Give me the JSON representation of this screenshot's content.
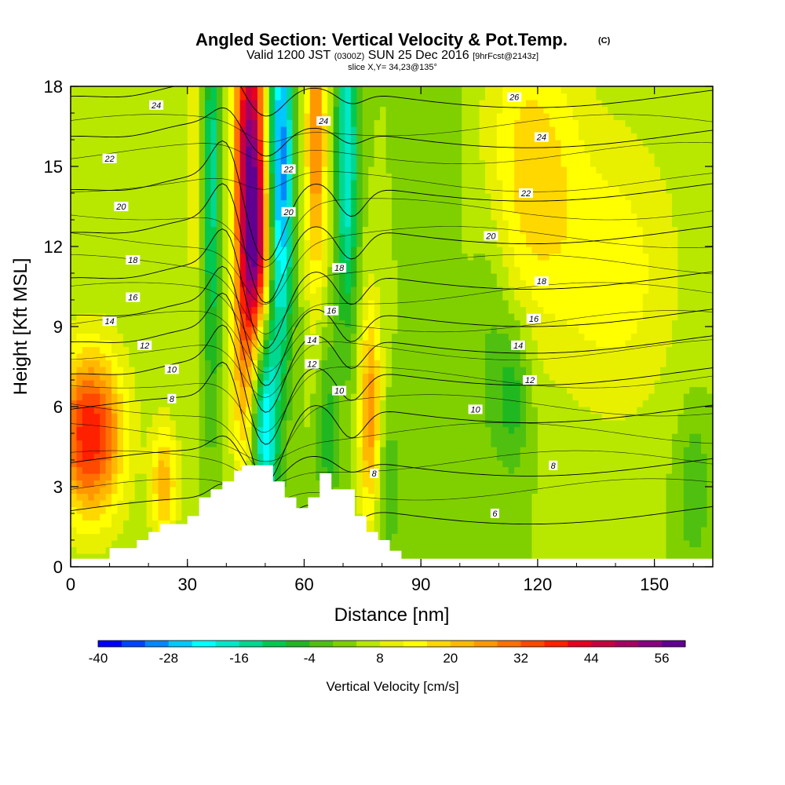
{
  "title": {
    "main": "Angled Section: Vertical Velocity & Pot.Temp.",
    "units": "(C)",
    "valid_prefix": "Valid 1200 JST",
    "valid_utc": "(0300Z)",
    "valid_date": "SUN 25 Dec 2016",
    "forecast": "[9hrFcst@2143z]",
    "slice": "slice X,Y= 34,23@135°"
  },
  "chart_data": {
    "type": "heatmap",
    "xlabel": "Distance [nm]",
    "ylabel": "Height [Kft MSL]",
    "xlim": [
      0,
      165
    ],
    "ylim": [
      0,
      18
    ],
    "x_ticks": [
      0,
      30,
      60,
      90,
      120,
      150
    ],
    "y_ticks": [
      0,
      3,
      6,
      9,
      12,
      15,
      18
    ],
    "colorbar": {
      "label": "Vertical Velocity [cm/s]",
      "range": [
        -40,
        60
      ],
      "tick_values": [
        -40,
        -28,
        -16,
        -4,
        8,
        20,
        32,
        44,
        56
      ],
      "colors": [
        "#0000ff",
        "#0044ff",
        "#0088ff",
        "#00c8ff",
        "#00ffff",
        "#00e8c8",
        "#00d890",
        "#00c850",
        "#20b820",
        "#50c010",
        "#80d000",
        "#b8e800",
        "#e8f000",
        "#ffff00",
        "#ffd800",
        "#ffb800",
        "#ff9800",
        "#ff7000",
        "#ff4800",
        "#ff2000",
        "#e80020",
        "#c80040",
        "#a80060",
        "#880080",
        "#600090"
      ]
    },
    "vertical_velocity_features": [
      {
        "x": 5,
        "y": 5,
        "sigma_x": 6,
        "sigma_y": 2.2,
        "value": 36
      },
      {
        "x": 24,
        "y": 3.2,
        "sigma_x": 2.5,
        "sigma_y": 1.6,
        "value": 18
      },
      {
        "x": 33,
        "y": 16,
        "sigma_x": 2.5,
        "sigma_y": 5,
        "value": 10
      },
      {
        "x": 36,
        "y": 15,
        "sigma_x": 1.8,
        "sigma_y": 6,
        "value": -22
      },
      {
        "x": 46,
        "y": 15.5,
        "sigma_x": 2.8,
        "sigma_y": 4.5,
        "value": 48
      },
      {
        "x": 48,
        "y": 11.5,
        "sigma_x": 2.5,
        "sigma_y": 2.5,
        "value": 26
      },
      {
        "x": 54,
        "y": 15,
        "sigma_x": 2.2,
        "sigma_y": 5,
        "value": -36
      },
      {
        "x": 50,
        "y": 5.5,
        "sigma_x": 2.2,
        "sigma_y": 3,
        "value": -28
      },
      {
        "x": 44,
        "y": 7,
        "sigma_x": 2,
        "sigma_y": 3,
        "value": 14
      },
      {
        "x": 63,
        "y": 16,
        "sigma_x": 2,
        "sigma_y": 4,
        "value": 24
      },
      {
        "x": 71,
        "y": 15.5,
        "sigma_x": 2,
        "sigma_y": 4.5,
        "value": -24
      },
      {
        "x": 66,
        "y": 5,
        "sigma_x": 2,
        "sigma_y": 2.5,
        "value": -10
      },
      {
        "x": 77,
        "y": 5.5,
        "sigma_x": 2,
        "sigma_y": 3,
        "value": 24
      },
      {
        "x": 81,
        "y": 3,
        "sigma_x": 3,
        "sigma_y": 2,
        "value": -8
      },
      {
        "x": 118,
        "y": 15,
        "sigma_x": 9,
        "sigma_y": 4,
        "value": 14
      },
      {
        "x": 108,
        "y": 9,
        "sigma_x": 4,
        "sigma_y": 4,
        "value": -6
      },
      {
        "x": 140,
        "y": 11,
        "sigma_x": 12,
        "sigma_y": 4,
        "value": 10
      },
      {
        "x": 114,
        "y": 6.5,
        "sigma_x": 3,
        "sigma_y": 2,
        "value": -10
      },
      {
        "x": 160,
        "y": 3,
        "sigma_x": 3,
        "sigma_y": 2,
        "value": -8
      },
      {
        "x": 95,
        "y": 16,
        "sigma_x": 4,
        "sigma_y": 4,
        "value": -4
      }
    ],
    "background_value": 4,
    "theta_contours": {
      "levels": [
        6,
        8,
        10,
        12,
        14,
        16,
        18,
        20,
        22,
        24,
        26
      ],
      "labels": [
        {
          "text": "24",
          "x": 22,
          "y": 17.3
        },
        {
          "text": "22",
          "x": 10,
          "y": 15.3
        },
        {
          "text": "20",
          "x": 13,
          "y": 13.5
        },
        {
          "text": "18",
          "x": 16,
          "y": 11.5
        },
        {
          "text": "16",
          "x": 16,
          "y": 10.1
        },
        {
          "text": "14",
          "x": 10,
          "y": 9.2
        },
        {
          "text": "12",
          "x": 19,
          "y": 8.3
        },
        {
          "text": "10",
          "x": 26,
          "y": 7.4
        },
        {
          "text": "8",
          "x": 26,
          "y": 6.3
        },
        {
          "text": "24",
          "x": 65,
          "y": 16.7
        },
        {
          "text": "22",
          "x": 56,
          "y": 14.9
        },
        {
          "text": "20",
          "x": 56,
          "y": 13.3
        },
        {
          "text": "18",
          "x": 69,
          "y": 11.2
        },
        {
          "text": "16",
          "x": 67,
          "y": 9.6
        },
        {
          "text": "14",
          "x": 62,
          "y": 8.5
        },
        {
          "text": "12",
          "x": 62,
          "y": 7.6
        },
        {
          "text": "10",
          "x": 69,
          "y": 6.6
        },
        {
          "text": "8",
          "x": 78,
          "y": 3.5
        },
        {
          "text": "26",
          "x": 114,
          "y": 17.6
        },
        {
          "text": "24",
          "x": 121,
          "y": 16.1
        },
        {
          "text": "22",
          "x": 117,
          "y": 14.0
        },
        {
          "text": "20",
          "x": 108,
          "y": 12.4
        },
        {
          "text": "18",
          "x": 121,
          "y": 10.7
        },
        {
          "text": "16",
          "x": 119,
          "y": 9.3
        },
        {
          "text": "14",
          "x": 115,
          "y": 8.3
        },
        {
          "text": "12",
          "x": 118,
          "y": 7.0
        },
        {
          "text": "10",
          "x": 104,
          "y": 5.9
        },
        {
          "text": "8",
          "x": 124,
          "y": 3.8
        },
        {
          "text": "6",
          "x": 109,
          "y": 2.0
        }
      ]
    },
    "terrain": {
      "x": [
        0,
        10,
        10,
        17,
        17,
        20,
        20,
        23,
        23,
        30,
        30,
        33,
        33,
        36,
        36,
        39,
        39,
        42,
        42,
        44,
        44,
        52,
        52,
        55,
        55,
        58,
        58,
        61,
        61,
        64,
        64,
        67,
        67,
        73,
        73,
        76,
        76,
        79,
        79,
        82,
        82,
        85,
        85,
        91,
        91,
        165
      ],
      "height": [
        0.3,
        0.3,
        0.7,
        0.7,
        1.0,
        1.0,
        1.3,
        1.3,
        1.6,
        1.6,
        1.9,
        1.9,
        2.6,
        2.6,
        2.9,
        2.9,
        3.2,
        3.2,
        3.6,
        3.6,
        3.8,
        3.8,
        3.2,
        3.2,
        2.6,
        2.6,
        2.2,
        2.2,
        2.6,
        2.6,
        3.5,
        3.5,
        2.9,
        2.9,
        1.9,
        1.9,
        1.3,
        1.3,
        1.0,
        1.0,
        0.6,
        0.6,
        0.3,
        0.3,
        0.3,
        0.3
      ]
    }
  }
}
